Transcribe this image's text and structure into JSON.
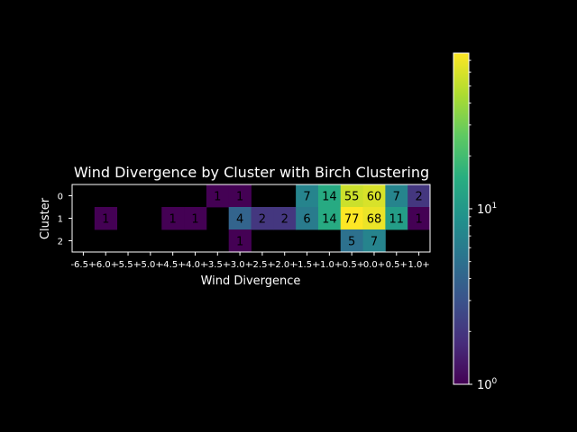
{
  "chart_data": {
    "type": "heatmap",
    "title": "Wind Divergence by Cluster with Birch Clustering",
    "xlabel": "Wind Divergence",
    "ylabel": "Cluster",
    "x_categories": [
      "-6.5+",
      "-6.0+",
      "-5.5+",
      "-5.0+",
      "-4.5+",
      "-4.0+",
      "-3.5+",
      "-3.0+",
      "-2.5+",
      "-2.0+",
      "-1.5+",
      "-1.0+",
      "-0.5+",
      "0.0+",
      "0.5+",
      "1.0+"
    ],
    "y_categories": [
      "0",
      "1",
      "2"
    ],
    "values": [
      [
        null,
        null,
        null,
        null,
        null,
        null,
        1,
        1,
        null,
        null,
        7,
        14,
        55,
        60,
        7,
        2
      ],
      [
        null,
        1,
        null,
        null,
        1,
        1,
        null,
        4,
        2,
        2,
        6,
        14,
        77,
        68,
        11,
        1
      ],
      [
        null,
        null,
        null,
        null,
        null,
        null,
        null,
        1,
        null,
        null,
        null,
        null,
        5,
        7,
        null,
        null
      ]
    ],
    "colorbar": {
      "scale": "log",
      "colormap": "viridis",
      "range": [
        1,
        77
      ],
      "tick_labels": [
        "10^0",
        "10^1"
      ]
    }
  }
}
